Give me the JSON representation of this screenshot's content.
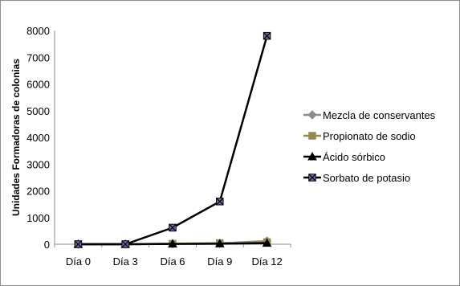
{
  "chart_data": {
    "type": "line",
    "title": "",
    "xlabel": "",
    "ylabel": "Unidades Formadoras de colonias",
    "categories": [
      "Día 0",
      "Día 3",
      "Día 6",
      "Día 9",
      "Día 12"
    ],
    "ylim": [
      0,
      8000
    ],
    "yticks": [
      "0",
      "1000",
      "2000",
      "3000",
      "4000",
      "5000",
      "6000",
      "7000",
      "8000"
    ],
    "grid": false,
    "legend_position": "right",
    "series": [
      {
        "name": "Mezcla de conservantes",
        "values": [
          0,
          0,
          20,
          30,
          120
        ],
        "color": "#8c8c8c",
        "marker": "diamond"
      },
      {
        "name": "Propionato de sodio",
        "values": [
          0,
          0,
          20,
          40,
          80
        ],
        "color": "#948a54",
        "marker": "square"
      },
      {
        "name": "Ácido sórbico",
        "values": [
          0,
          0,
          10,
          20,
          40
        ],
        "color": "#000000",
        "marker": "triangle"
      },
      {
        "name": "Sorbato de potasio",
        "values": [
          0,
          0,
          620,
          1600,
          7800
        ],
        "color": "#000000",
        "marker": "x-square"
      }
    ]
  }
}
